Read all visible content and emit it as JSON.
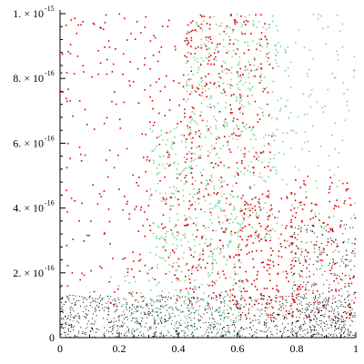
{
  "chart_data": {
    "type": "scatter",
    "title": "",
    "xlabel": "",
    "ylabel": "",
    "xlim": [
      0,
      1
    ],
    "ylim": [
      0,
      1e-15
    ],
    "grid": false,
    "legend": "none",
    "x_ticks": [
      {
        "value": 0,
        "label": "0"
      },
      {
        "value": 0.2,
        "label": "0.2"
      },
      {
        "value": 0.4,
        "label": "0.4"
      },
      {
        "value": 0.6,
        "label": "0.6"
      },
      {
        "value": 0.8,
        "label": "0.8"
      },
      {
        "value": 1,
        "label": "1"
      }
    ],
    "y_ticks": [
      {
        "value": 0,
        "mantissa": "0",
        "exponent": ""
      },
      {
        "value": 2e-16,
        "mantissa": "2. × 10",
        "exponent": "-16"
      },
      {
        "value": 4e-16,
        "mantissa": "4. × 10",
        "exponent": "-16"
      },
      {
        "value": 6e-16,
        "mantissa": "6. × 10",
        "exponent": "-16"
      },
      {
        "value": 8e-16,
        "mantissa": "8. × 10",
        "exponent": "-16"
      },
      {
        "value": 1e-15,
        "mantissa": "1. × 10",
        "exponent": "-15"
      }
    ],
    "series": [
      {
        "color": "#7ed4a0",
        "marker": "cross",
        "description_regions": [
          {
            "x": [
              0.0,
              0.16
            ],
            "y": [
              0,
              1.4e-16
            ],
            "density": 0.3
          },
          {
            "x": [
              0.16,
              0.3
            ],
            "y": [
              0,
              2e-16
            ],
            "density": 0.5
          },
          {
            "x": [
              0.3,
              0.42
            ],
            "y": [
              0,
              6.5e-16
            ],
            "density": 0.9
          },
          {
            "x": [
              0.42,
              0.62
            ],
            "y": [
              0,
              1e-15
            ],
            "density": 1.0
          },
          {
            "x": [
              0.62,
              0.74
            ],
            "y": [
              3e-16,
              1e-15
            ],
            "density": 0.8
          },
          {
            "x": [
              0.74,
              1.0
            ],
            "y": [
              2e-16,
              1e-15
            ],
            "density": 0.25
          }
        ]
      },
      {
        "color": "#e00000",
        "marker": "dot",
        "description_regions": [
          {
            "x": [
              0.0,
              0.3
            ],
            "y": [
              1e-16,
              1e-15
            ],
            "density": 0.25
          },
          {
            "x": [
              0.3,
              0.45
            ],
            "y": [
              1e-16,
              1e-15
            ],
            "density": 0.35
          },
          {
            "x": [
              0.42,
              0.72
            ],
            "y": [
              1e-16,
              1e-15
            ],
            "density": 0.55
          },
          {
            "x": [
              0.6,
              0.8
            ],
            "y": [
              5e-17,
              4.5e-16
            ],
            "density": 0.7
          },
          {
            "x": [
              0.78,
              1.0
            ],
            "y": [
              5e-17,
              5e-16
            ],
            "density": 0.6
          }
        ]
      },
      {
        "color": "#000000",
        "marker": "dot",
        "description_regions": [
          {
            "x": [
              0.0,
              1.0
            ],
            "y": [
              0,
              1.3e-16
            ],
            "density": 1.0
          },
          {
            "x": [
              0.78,
              1.0
            ],
            "y": [
              0,
              3.5e-16
            ],
            "density": 0.5
          }
        ]
      }
    ]
  }
}
